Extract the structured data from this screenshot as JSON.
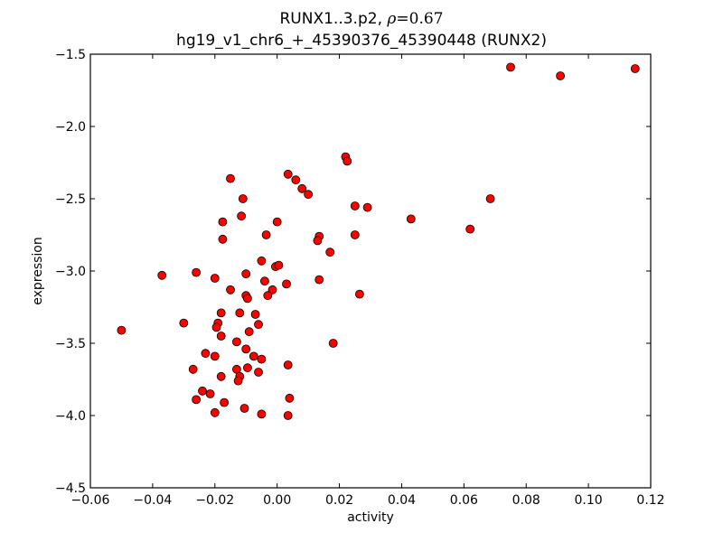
{
  "chart_data": {
    "type": "scatter",
    "title": "RUNX1..3.p2, ρ=0.67",
    "title_parts": {
      "prefix": "RUNX1..3.p2, ",
      "symbol": "ρ",
      "equals": "=",
      "value": "0.67"
    },
    "subtitle": "hg19_v1_chr6_+_45390376_45390448 (RUNX2)",
    "xlabel": "activity",
    "ylabel": "expression",
    "xlim": [
      -0.06,
      0.12
    ],
    "ylim": [
      -4.5,
      -1.5
    ],
    "xticks": [
      "−0.06",
      "−0.04",
      "−0.02",
      "0.00",
      "0.02",
      "0.04",
      "0.06",
      "0.08",
      "0.10",
      "0.12"
    ],
    "yticks": [
      "−1.5",
      "−2.0",
      "−2.5",
      "−3.0",
      "−3.5",
      "−4.0",
      "−4.5"
    ],
    "grid": false,
    "legend": null,
    "marker": {
      "color": "#ff0000",
      "edge": "#000000",
      "radius": 4.5
    },
    "points": [
      [
        0.075,
        -1.59
      ],
      [
        0.091,
        -1.65
      ],
      [
        0.115,
        -1.6
      ],
      [
        0.022,
        -2.21
      ],
      [
        0.0225,
        -2.24
      ],
      [
        -0.015,
        -2.36
      ],
      [
        0.0035,
        -2.33
      ],
      [
        0.006,
        -2.37
      ],
      [
        0.008,
        -2.43
      ],
      [
        0.01,
        -2.47
      ],
      [
        -0.011,
        -2.5
      ],
      [
        0.0685,
        -2.5
      ],
      [
        0.025,
        -2.55
      ],
      [
        0.029,
        -2.56
      ],
      [
        -0.0115,
        -2.62
      ],
      [
        -0.0175,
        -2.66
      ],
      [
        0.0,
        -2.66
      ],
      [
        0.043,
        -2.64
      ],
      [
        0.062,
        -2.71
      ],
      [
        -0.0175,
        -2.78
      ],
      [
        -0.0035,
        -2.75
      ],
      [
        0.0135,
        -2.76
      ],
      [
        0.013,
        -2.79
      ],
      [
        0.025,
        -2.75
      ],
      [
        0.017,
        -2.87
      ],
      [
        -0.005,
        -2.93
      ],
      [
        -0.0005,
        -2.97
      ],
      [
        0.0005,
        -2.96
      ],
      [
        -0.037,
        -3.03
      ],
      [
        -0.026,
        -3.01
      ],
      [
        -0.02,
        -3.05
      ],
      [
        -0.01,
        -3.02
      ],
      [
        -0.004,
        -3.07
      ],
      [
        0.003,
        -3.09
      ],
      [
        0.0135,
        -3.06
      ],
      [
        -0.015,
        -3.13
      ],
      [
        -0.0015,
        -3.13
      ],
      [
        -0.01,
        -3.17
      ],
      [
        -0.0095,
        -3.19
      ],
      [
        -0.003,
        -3.17
      ],
      [
        0.0265,
        -3.16
      ],
      [
        -0.018,
        -3.29
      ],
      [
        -0.012,
        -3.29
      ],
      [
        -0.007,
        -3.3
      ],
      [
        -0.03,
        -3.36
      ],
      [
        -0.019,
        -3.36
      ],
      [
        -0.0195,
        -3.39
      ],
      [
        -0.006,
        -3.37
      ],
      [
        -0.05,
        -3.41
      ],
      [
        -0.018,
        -3.45
      ],
      [
        -0.009,
        -3.42
      ],
      [
        -0.013,
        -3.49
      ],
      [
        0.018,
        -3.5
      ],
      [
        -0.01,
        -3.54
      ],
      [
        -0.023,
        -3.57
      ],
      [
        -0.02,
        -3.59
      ],
      [
        -0.0075,
        -3.59
      ],
      [
        -0.005,
        -3.61
      ],
      [
        -0.027,
        -3.68
      ],
      [
        -0.013,
        -3.68
      ],
      [
        -0.0095,
        -3.67
      ],
      [
        -0.006,
        -3.7
      ],
      [
        0.0035,
        -3.65
      ],
      [
        -0.018,
        -3.73
      ],
      [
        -0.012,
        -3.73
      ],
      [
        -0.0125,
        -3.76
      ],
      [
        -0.024,
        -3.83
      ],
      [
        -0.0215,
        -3.85
      ],
      [
        -0.026,
        -3.89
      ],
      [
        -0.017,
        -3.91
      ],
      [
        0.004,
        -3.88
      ],
      [
        -0.0105,
        -3.95
      ],
      [
        -0.02,
        -3.98
      ],
      [
        -0.005,
        -3.99
      ],
      [
        0.0035,
        -4.0
      ]
    ]
  }
}
